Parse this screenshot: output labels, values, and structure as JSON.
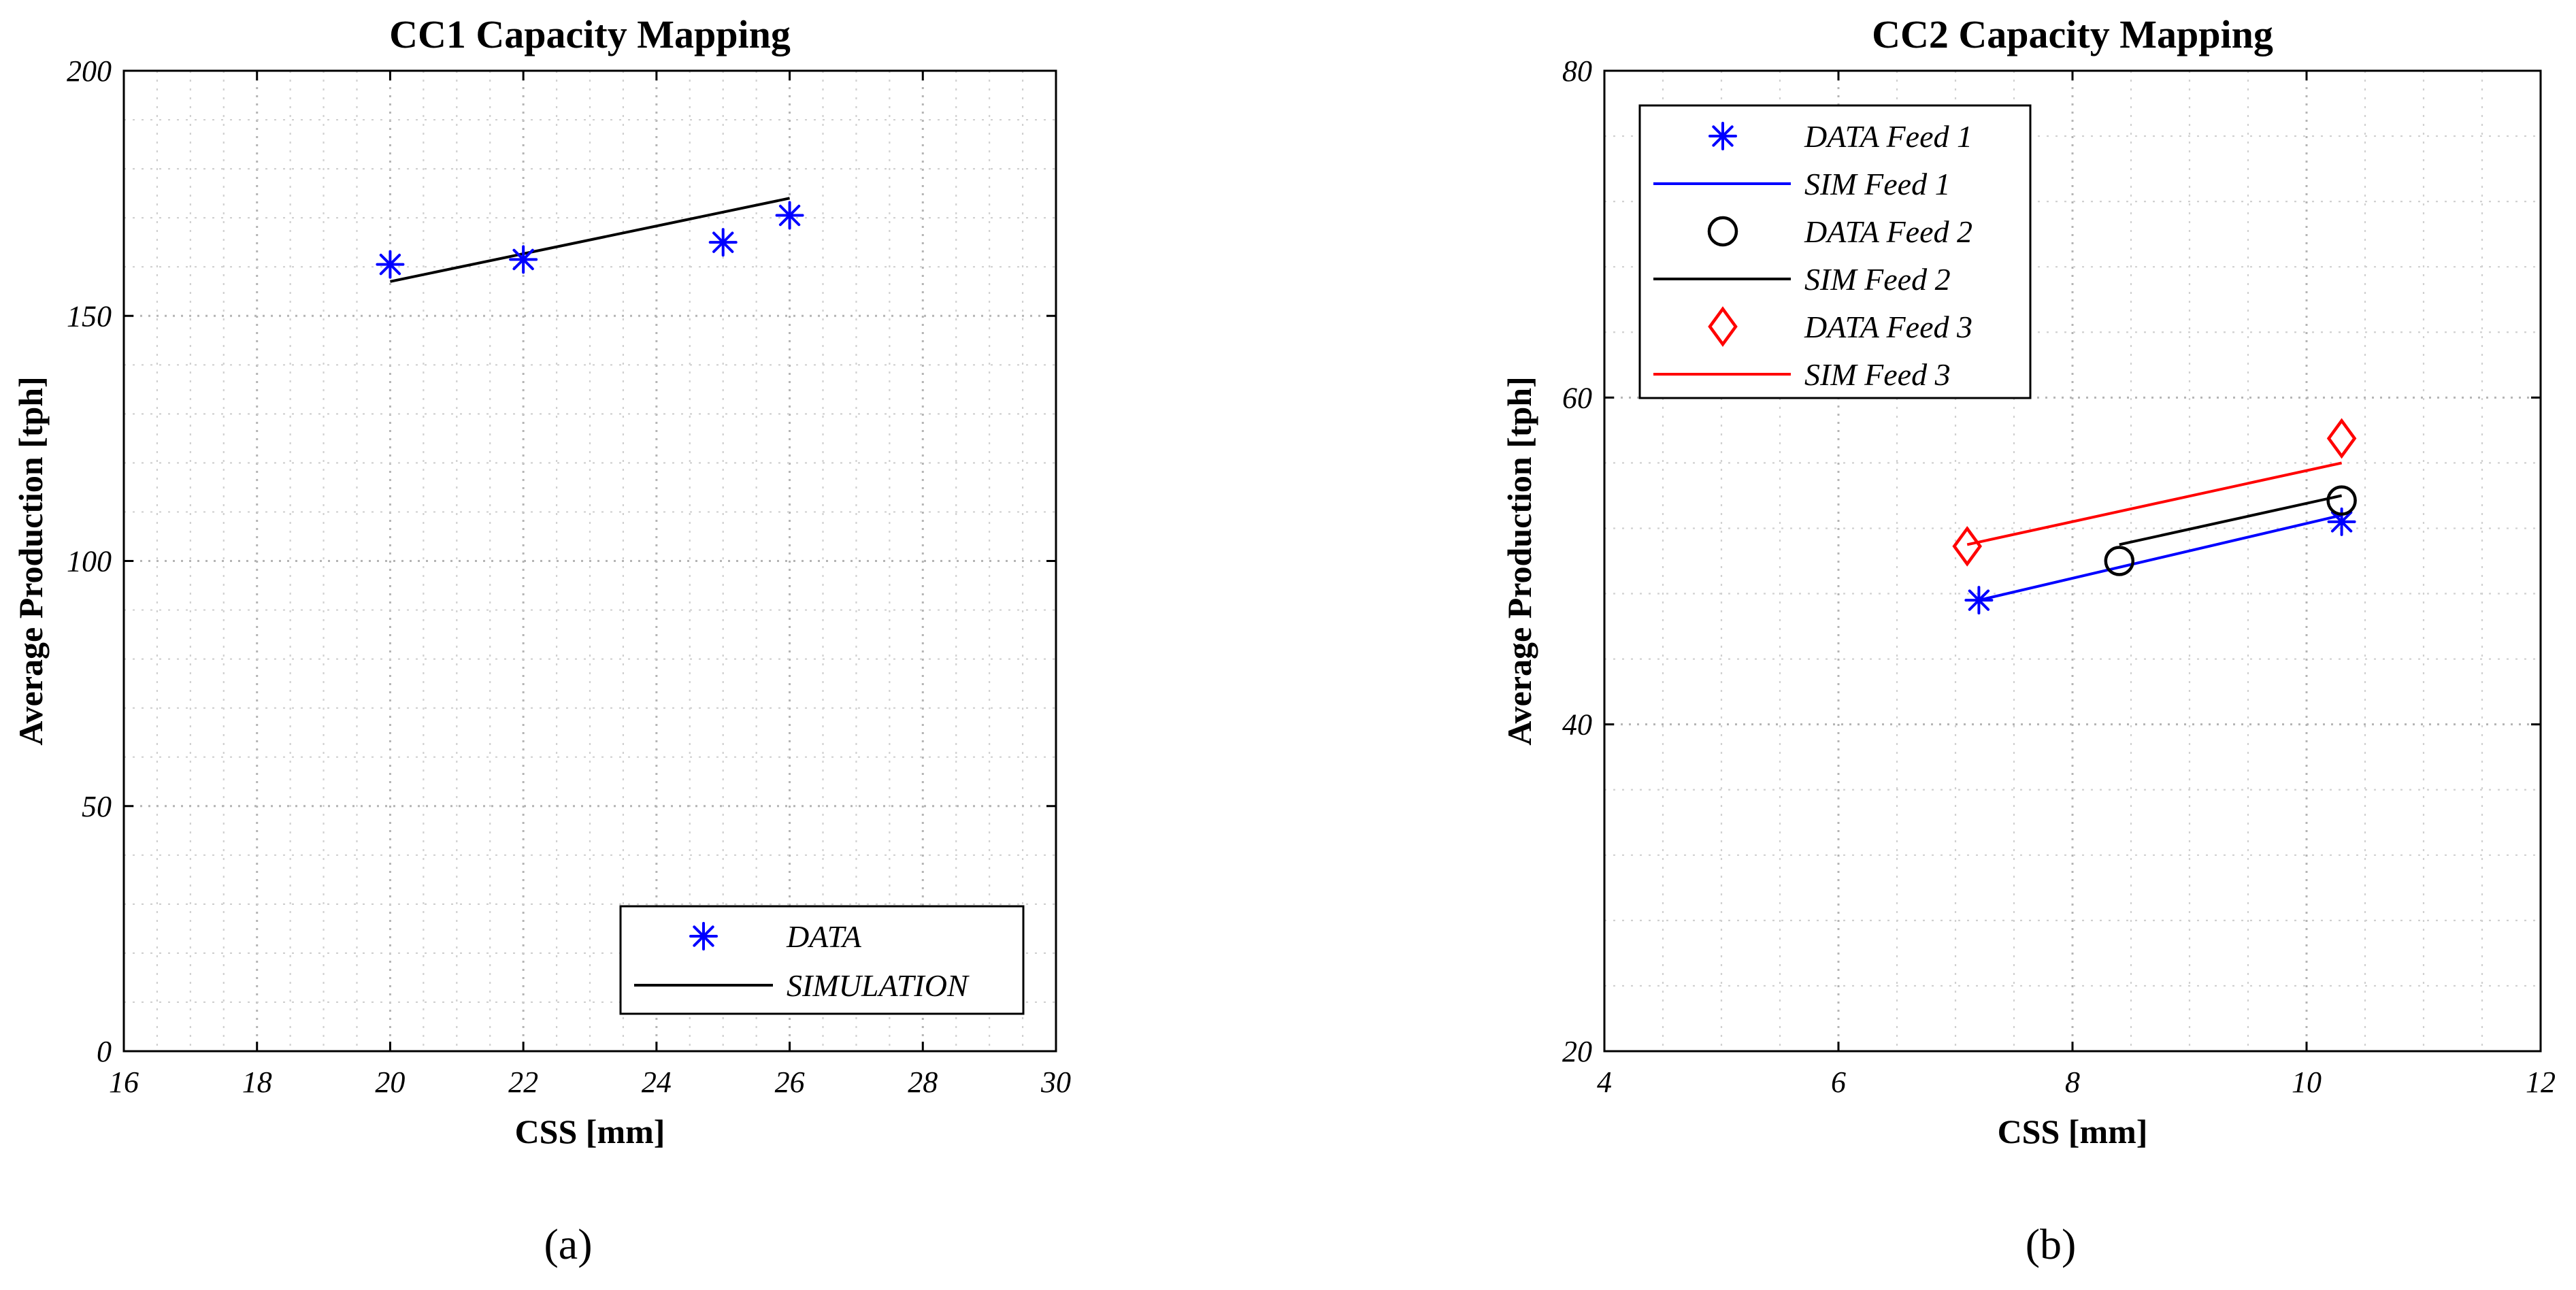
{
  "chart_data": [
    {
      "type": "line",
      "title": "CC1 Capacity Mapping",
      "xlabel": "CSS [mm]",
      "ylabel": "Average Production [tph]",
      "xlim": [
        16,
        30
      ],
      "ylim": [
        0,
        200
      ],
      "xticks": [
        16,
        18,
        20,
        22,
        24,
        26,
        28,
        30
      ],
      "yticks": [
        0,
        50,
        100,
        150,
        200
      ],
      "grid": true,
      "legend_position": "bottom-right",
      "caption": "(a)",
      "series": [
        {
          "name": "DATA",
          "kind": "marker",
          "marker": "asterisk",
          "color": "#0000ff",
          "x": [
            20,
            22,
            25,
            26
          ],
          "y": [
            160.5,
            161.5,
            165,
            170.5
          ]
        },
        {
          "name": "SIMULATION",
          "kind": "line",
          "color": "#000000",
          "x": [
            20,
            26
          ],
          "y": [
            157,
            174
          ]
        }
      ]
    },
    {
      "type": "line",
      "title": "CC2 Capacity Mapping",
      "xlabel": "CSS [mm]",
      "ylabel": "Average Production [tph]",
      "xlim": [
        4,
        12
      ],
      "ylim": [
        20,
        80
      ],
      "xticks": [
        4,
        6,
        8,
        10,
        12
      ],
      "yticks": [
        20,
        40,
        60,
        80
      ],
      "grid": true,
      "legend_position": "top-left",
      "caption": "(b)",
      "series": [
        {
          "name": "DATA Feed 1",
          "kind": "marker",
          "marker": "asterisk",
          "color": "#0000ff",
          "x": [
            7.2,
            10.3
          ],
          "y": [
            47.6,
            52.4
          ]
        },
        {
          "name": "SIM Feed 1",
          "kind": "line",
          "color": "#0000ff",
          "x": [
            7.2,
            10.3
          ],
          "y": [
            47.6,
            52.8
          ]
        },
        {
          "name": "DATA Feed 2",
          "kind": "marker",
          "marker": "circle",
          "color": "#000000",
          "x": [
            8.4,
            10.3
          ],
          "y": [
            50,
            53.7
          ]
        },
        {
          "name": "SIM Feed 2",
          "kind": "line",
          "color": "#000000",
          "x": [
            8.4,
            10.3
          ],
          "y": [
            51,
            54
          ]
        },
        {
          "name": "DATA Feed 3",
          "kind": "marker",
          "marker": "diamond",
          "color": "#ff0000",
          "x": [
            7.1,
            10.3
          ],
          "y": [
            50.9,
            57.5
          ]
        },
        {
          "name": "SIM Feed 3",
          "kind": "line",
          "color": "#ff0000",
          "x": [
            7.1,
            10.3
          ],
          "y": [
            51,
            56
          ]
        }
      ]
    }
  ]
}
